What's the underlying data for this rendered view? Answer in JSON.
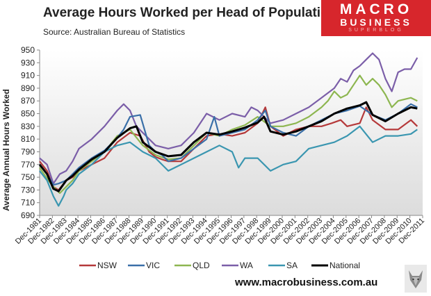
{
  "header": {
    "title": "Average Hours Worked per Head of Population",
    "subtitle": "Source: Australian Bureau of Statistics"
  },
  "logo": {
    "line1": "MACRO",
    "line2": "BUSINESS",
    "line3": "SUPERBLOG"
  },
  "footer": {
    "website": "www.macrobusiness.com.au"
  },
  "chart_data": {
    "type": "line",
    "title": "Average Hours Worked per Head of Population",
    "ylabel": "Average Annual Hours Worked",
    "xlabel": "",
    "ylim": [
      690,
      950
    ],
    "yticks": [
      690,
      710,
      730,
      750,
      770,
      790,
      810,
      830,
      850,
      870,
      890,
      910,
      930,
      950
    ],
    "xlim": [
      1981.92,
      2011.92
    ],
    "categories": [
      "Dec-1981",
      "Dec-1982",
      "Dec-1983",
      "Dec-1984",
      "Dec-1985",
      "Dec-1986",
      "Dec-1987",
      "Dec-1988",
      "Dec-1989",
      "Dec-1990",
      "Dec-1991",
      "Dec-1992",
      "Dec-1993",
      "Dec-1994",
      "Dec-1995",
      "Dec-1996",
      "Dec-1997",
      "Dec-1998",
      "Dec-1999",
      "Dec-2000",
      "Dec-2001",
      "Dec-2002",
      "Dec-2003",
      "Dec-2004",
      "Dec-2005",
      "Dec-2006",
      "Dec-2007",
      "Dec-2008",
      "Dec-2009",
      "Dec-2010",
      "Dec-2011"
    ],
    "grid": false,
    "legend_position": "bottom",
    "series": [
      {
        "name": "NSW",
        "color": "#b5393a",
        "x": [
          1981.92,
          1982.5,
          1983.0,
          1983.4,
          1984.0,
          1984.5,
          1985.0,
          1986.0,
          1987.0,
          1988.0,
          1989.0,
          1989.8,
          1990.5,
          1991.0,
          1991.5,
          1992.0,
          1993.0,
          1994.0,
          1995.0,
          1996.0,
          1997.0,
          1998.0,
          1999.0,
          1999.6,
          2000.0,
          2001.0,
          2002.0,
          2003.0,
          2004.0,
          2004.8,
          2005.5,
          2006.0,
          2007.0,
          2007.5,
          2008.0,
          2009.0,
          2010.0,
          2011.0,
          2011.5
        ],
        "values": [
          775,
          760,
          735,
          730,
          745,
          750,
          760,
          770,
          780,
          805,
          820,
          815,
          790,
          782,
          778,
          775,
          775,
          795,
          815,
          818,
          815,
          820,
          835,
          860,
          830,
          815,
          825,
          830,
          830,
          835,
          840,
          830,
          835,
          860,
          840,
          825,
          825,
          840,
          830
        ]
      },
      {
        "name": "VIC",
        "color": "#3a6fa8",
        "x": [
          1981.92,
          1982.5,
          1983.0,
          1983.4,
          1984.0,
          1984.5,
          1985.0,
          1986.0,
          1987.0,
          1988.0,
          1988.5,
          1989.0,
          1989.8,
          1990.5,
          1991.0,
          1991.5,
          1992.0,
          1993.0,
          1994.0,
          1995.0,
          1995.6,
          1996.0,
          1997.0,
          1998.0,
          1999.0,
          1999.6,
          2000.0,
          2001.0,
          2002.0,
          2003.0,
          2004.0,
          2005.0,
          2006.0,
          2007.0,
          2008.0,
          2009.0,
          2010.0,
          2011.0,
          2011.5
        ],
        "values": [
          770,
          755,
          738,
          740,
          745,
          755,
          765,
          780,
          792,
          812,
          825,
          845,
          848,
          800,
          790,
          785,
          775,
          780,
          795,
          810,
          845,
          815,
          820,
          825,
          840,
          855,
          830,
          820,
          815,
          830,
          840,
          850,
          855,
          862,
          848,
          840,
          850,
          865,
          860
        ]
      },
      {
        "name": "QLD",
        "color": "#8db650",
        "x": [
          1981.92,
          1982.5,
          1983.0,
          1983.5,
          1984.0,
          1984.5,
          1985.0,
          1986.0,
          1987.0,
          1988.0,
          1989.0,
          1990.0,
          1991.0,
          1992.0,
          1993.0,
          1994.0,
          1995.0,
          1996.0,
          1997.0,
          1998.0,
          1999.0,
          2000.0,
          2001.0,
          2002.0,
          2003.0,
          2004.0,
          2004.5,
          2005.0,
          2005.5,
          2006.0,
          2006.5,
          2007.0,
          2007.5,
          2008.0,
          2008.5,
          2009.0,
          2009.5,
          2010.0,
          2011.0,
          2011.5
        ],
        "values": [
          765,
          748,
          735,
          725,
          735,
          745,
          760,
          775,
          790,
          815,
          825,
          800,
          785,
          778,
          780,
          800,
          820,
          815,
          825,
          832,
          845,
          830,
          830,
          835,
          845,
          860,
          870,
          885,
          875,
          880,
          895,
          910,
          895,
          905,
          895,
          880,
          860,
          870,
          875,
          870
        ]
      },
      {
        "name": "WA",
        "color": "#7b5ea8",
        "x": [
          1981.92,
          1982.5,
          1983.0,
          1983.5,
          1984.0,
          1984.5,
          1985.0,
          1986.0,
          1987.0,
          1988.0,
          1988.5,
          1989.0,
          1989.5,
          1990.0,
          1991.0,
          1992.0,
          1993.0,
          1994.0,
          1995.0,
          1995.5,
          1996.0,
          1997.0,
          1998.0,
          1998.5,
          1999.0,
          2000.0,
          2001.0,
          2002.0,
          2003.0,
          2004.0,
          2005.0,
          2005.5,
          2006.0,
          2006.5,
          2007.0,
          2007.5,
          2008.0,
          2008.5,
          2009.0,
          2009.5,
          2010.0,
          2010.5,
          2011.0,
          2011.5
        ],
        "values": [
          780,
          770,
          740,
          755,
          760,
          775,
          795,
          810,
          830,
          855,
          865,
          855,
          830,
          820,
          800,
          795,
          800,
          820,
          850,
          845,
          840,
          850,
          845,
          860,
          855,
          835,
          840,
          850,
          860,
          875,
          890,
          905,
          900,
          918,
          925,
          935,
          945,
          935,
          905,
          885,
          915,
          920,
          920,
          938
        ]
      },
      {
        "name": "SA",
        "color": "#3a96b0",
        "x": [
          1981.92,
          1982.5,
          1983.0,
          1983.4,
          1983.8,
          1984.0,
          1984.5,
          1985.0,
          1986.0,
          1987.0,
          1988.0,
          1989.0,
          1990.0,
          1991.0,
          1992.0,
          1993.0,
          1994.0,
          1995.0,
          1996.0,
          1997.0,
          1997.5,
          1998.0,
          1999.0,
          2000.0,
          2001.0,
          2002.0,
          2003.0,
          2004.0,
          2005.0,
          2006.0,
          2007.0,
          2008.0,
          2009.0,
          2010.0,
          2011.0,
          2011.5
        ],
        "values": [
          760,
          745,
          720,
          705,
          720,
          730,
          740,
          755,
          770,
          790,
          800,
          805,
          790,
          780,
          760,
          770,
          780,
          790,
          800,
          790,
          765,
          780,
          780,
          760,
          770,
          775,
          795,
          800,
          805,
          815,
          830,
          805,
          815,
          815,
          818,
          825
        ]
      },
      {
        "name": "National",
        "color": "#000000",
        "x": [
          1981.92,
          1982.5,
          1983.0,
          1983.4,
          1984.0,
          1984.5,
          1985.0,
          1986.0,
          1987.0,
          1988.0,
          1989.0,
          1989.5,
          1990.0,
          1991.0,
          1992.0,
          1993.0,
          1994.0,
          1995.0,
          1996.0,
          1997.0,
          1998.0,
          1999.0,
          1999.5,
          2000.0,
          2001.0,
          2002.0,
          2003.0,
          2004.0,
          2005.0,
          2006.0,
          2007.0,
          2007.5,
          2008.0,
          2009.0,
          2010.0,
          2011.0,
          2011.5
        ],
        "values": [
          770,
          755,
          732,
          728,
          745,
          752,
          762,
          778,
          790,
          812,
          827,
          830,
          805,
          790,
          783,
          785,
          805,
          820,
          817,
          822,
          828,
          836,
          845,
          822,
          817,
          822,
          830,
          838,
          850,
          858,
          863,
          868,
          848,
          838,
          850,
          860,
          858
        ]
      }
    ]
  }
}
